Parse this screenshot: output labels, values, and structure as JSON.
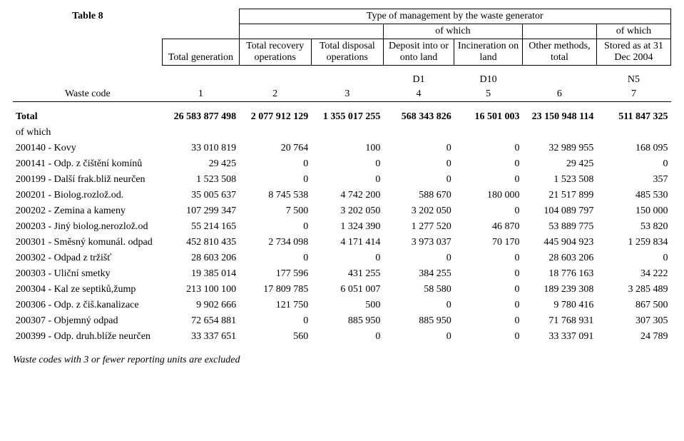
{
  "title": "Table 8",
  "header": {
    "span_label": "Type of management by the waste generator",
    "of_which": "of which",
    "cols": [
      "Total generation",
      "Total recovery operations",
      "Total disposal operations",
      "Deposit into or onto land",
      "Incineration on land",
      "Other methods, total",
      "Stored as         at 31 Dec 2004"
    ],
    "codes": [
      "",
      "",
      "",
      "D1",
      "D10",
      "",
      "N5"
    ],
    "waste_code_label": "Waste code",
    "numbers": [
      "1",
      "2",
      "3",
      "4",
      "5",
      "6",
      "7"
    ]
  },
  "total_row": {
    "label": "Total",
    "vals": [
      "26 583 877 498",
      "2 077 912 129",
      "1 355 017 255",
      "568 343 826",
      "16 501 003",
      "23 150 948 114",
      "511 847 325"
    ]
  },
  "of_which_label": "of which",
  "rows": [
    {
      "label": "200140 - Kovy",
      "vals": [
        "33 010 819",
        "20 764",
        "100",
        "0",
        "0",
        "32 989 955",
        "168 095"
      ]
    },
    {
      "label": "200141 - Odp. z čištění komínů",
      "vals": [
        "29 425",
        "0",
        "0",
        "0",
        "0",
        "29 425",
        "0"
      ]
    },
    {
      "label": "200199 - Další frak.bliž neurčen",
      "vals": [
        "1 523 508",
        "0",
        "0",
        "0",
        "0",
        "1 523 508",
        "357"
      ]
    },
    {
      "label": "200201 - Biolog.rozlož.od.",
      "vals": [
        "35 005 637",
        "8 745 538",
        "4 742 200",
        "588 670",
        "180 000",
        "21 517 899",
        "485 530"
      ]
    },
    {
      "label": "200202 - Zemina a kameny",
      "vals": [
        "107 299 347",
        "7 500",
        "3 202 050",
        "3 202 050",
        "0",
        "104 089 797",
        "150 000"
      ]
    },
    {
      "label": "200203 - Jiný biolog.nerozlož.od",
      "vals": [
        "55 214 165",
        "0",
        "1 324 390",
        "1 277 520",
        "46 870",
        "53 889 775",
        "53 820"
      ]
    },
    {
      "label": "200301 - Směsný komunál. odpad",
      "vals": [
        "452 810 435",
        "2 734 098",
        "4 171 414",
        "3 973 037",
        "70 170",
        "445 904 923",
        "1 259 834"
      ]
    },
    {
      "label": "200302 - Odpad z tržišť",
      "vals": [
        "28 603 206",
        "0",
        "0",
        "0",
        "0",
        "28 603 206",
        "0"
      ]
    },
    {
      "label": "200303 - Uliční smetky",
      "vals": [
        "19 385 014",
        "177 596",
        "431 255",
        "384 255",
        "0",
        "18 776 163",
        "34 222"
      ]
    },
    {
      "label": "200304 - Kal ze septiků,žump",
      "vals": [
        "213 100 100",
        "17 809 785",
        "6 051 007",
        "58 580",
        "0",
        "189 239 308",
        "3 285 489"
      ]
    },
    {
      "label": "200306 - Odp. z čiš.kanalizace",
      "vals": [
        "9 902 666",
        "121 750",
        "500",
        "0",
        "0",
        "9 780 416",
        "867 500"
      ]
    },
    {
      "label": "200307 - Objemný odpad",
      "vals": [
        "72 654 881",
        "0",
        "885 950",
        "885 950",
        "0",
        "71 768 931",
        "307 305"
      ]
    },
    {
      "label": "200399 - Odp. druh.blíže neurčen",
      "vals": [
        "33 337 651",
        "560",
        "0",
        "0",
        "0",
        "33 337 091",
        "24 789"
      ]
    }
  ],
  "footnote": "Waste codes with 3 or fewer reporting units are excluded"
}
